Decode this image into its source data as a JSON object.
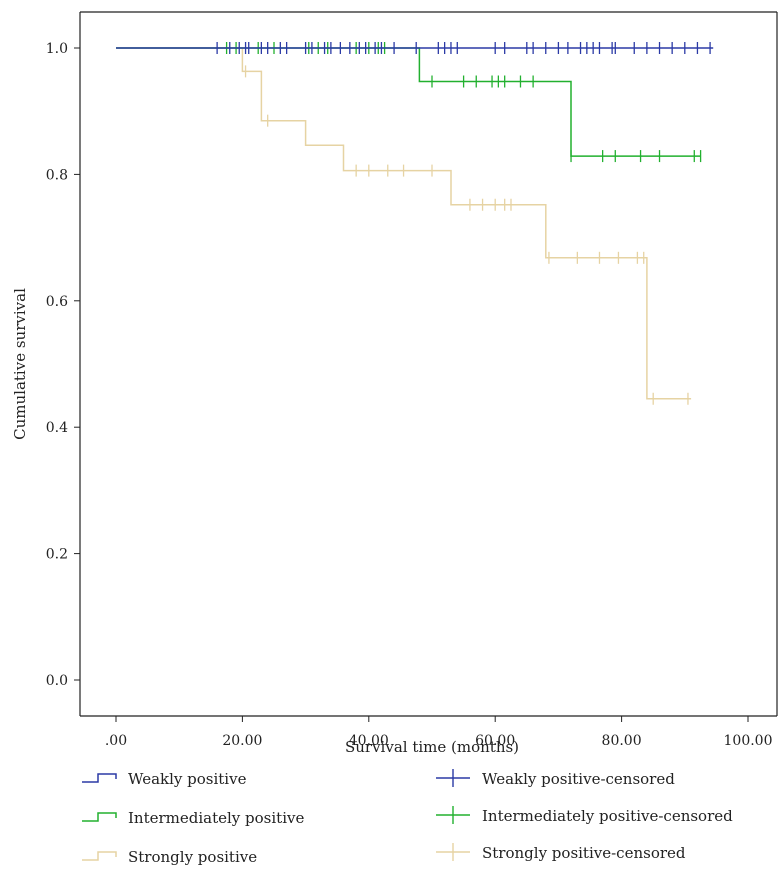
{
  "chart_data": {
    "type": "line",
    "subtype": "kaplan-meier",
    "xlabel": "Survival time (months)",
    "ylabel": "Cumulative survival",
    "xlim": [
      0,
      100
    ],
    "ylim": [
      0,
      1.0
    ],
    "x_ticks": [
      0,
      20,
      40,
      60,
      80,
      100
    ],
    "x_tick_labels": [
      ".00",
      "20.00",
      "40.00",
      "60.00",
      "80.00",
      "100.00"
    ],
    "y_ticks": [
      0,
      0.2,
      0.4,
      0.6,
      0.8,
      1.0
    ],
    "y_tick_labels": [
      "0.0",
      "0.2",
      "0.4",
      "0.6",
      "0.8",
      "1.0"
    ],
    "grid": false,
    "legend_position": "bottom",
    "legend": {
      "weakly": "Weakly positive",
      "intermediately": "Intermediately positive",
      "strongly": "Strongly positive",
      "weakly_censored": "Weakly positive-censored",
      "intermediately_censored": "Intermediately positive-censored",
      "strongly_censored": "Strongly positive-censored"
    },
    "series": [
      {
        "name": "Weakly positive",
        "color": "#2b3aa6",
        "steps": [
          [
            0,
            1.0
          ],
          [
            94.5,
            1.0
          ]
        ],
        "censored": [
          [
            16,
            1.0
          ],
          [
            18,
            1.0
          ],
          [
            19.5,
            1.0
          ],
          [
            20.5,
            1.0
          ],
          [
            21,
            1.0
          ],
          [
            23,
            1.0
          ],
          [
            24,
            1.0
          ],
          [
            26,
            1.0
          ],
          [
            27,
            1.0
          ],
          [
            30,
            1.0
          ],
          [
            31,
            1.0
          ],
          [
            33,
            1.0
          ],
          [
            34,
            1.0
          ],
          [
            35.5,
            1.0
          ],
          [
            37,
            1.0
          ],
          [
            38.5,
            1.0
          ],
          [
            39.5,
            1.0
          ],
          [
            41,
            1.0
          ],
          [
            42,
            1.0
          ],
          [
            44,
            1.0
          ],
          [
            47.5,
            1.0
          ],
          [
            51,
            1.0
          ],
          [
            52,
            1.0
          ],
          [
            53,
            1.0
          ],
          [
            54,
            1.0
          ],
          [
            60,
            1.0
          ],
          [
            61.5,
            1.0
          ],
          [
            65,
            1.0
          ],
          [
            66,
            1.0
          ],
          [
            68,
            1.0
          ],
          [
            70,
            1.0
          ],
          [
            71.5,
            1.0
          ],
          [
            73.5,
            1.0
          ],
          [
            74.5,
            1.0
          ],
          [
            75.5,
            1.0
          ],
          [
            76.5,
            1.0
          ],
          [
            78.5,
            1.0
          ],
          [
            79,
            1.0
          ],
          [
            82,
            1.0
          ],
          [
            84,
            1.0
          ],
          [
            86,
            1.0
          ],
          [
            88,
            1.0
          ],
          [
            90,
            1.0
          ],
          [
            92,
            1.0
          ],
          [
            94,
            1.0
          ]
        ]
      },
      {
        "name": "Intermediately positive",
        "color": "#22b02f",
        "steps": [
          [
            0,
            1.0
          ],
          [
            48,
            1.0
          ],
          [
            48,
            0.947
          ],
          [
            72,
            0.947
          ],
          [
            72,
            0.829
          ],
          [
            92.5,
            0.829
          ]
        ],
        "censored": [
          [
            17.5,
            1.0
          ],
          [
            19,
            1.0
          ],
          [
            22.5,
            1.0
          ],
          [
            25,
            1.0
          ],
          [
            30.5,
            1.0
          ],
          [
            32,
            1.0
          ],
          [
            33.5,
            1.0
          ],
          [
            38,
            1.0
          ],
          [
            40,
            1.0
          ],
          [
            41.5,
            1.0
          ],
          [
            42.5,
            1.0
          ],
          [
            50,
            0.947
          ],
          [
            55,
            0.947
          ],
          [
            57,
            0.947
          ],
          [
            59.5,
            0.947
          ],
          [
            60.5,
            0.947
          ],
          [
            61.5,
            0.947
          ],
          [
            64,
            0.947
          ],
          [
            66,
            0.947
          ],
          [
            72,
            0.829
          ],
          [
            77,
            0.829
          ],
          [
            79,
            0.829
          ],
          [
            83,
            0.829
          ],
          [
            86,
            0.829
          ],
          [
            91.5,
            0.829
          ],
          [
            92.5,
            0.829
          ]
        ]
      },
      {
        "name": "Strongly positive",
        "color": "#e6d3a3",
        "steps": [
          [
            0,
            1.0
          ],
          [
            20,
            1.0
          ],
          [
            20,
            0.963
          ],
          [
            23,
            0.963
          ],
          [
            23,
            0.885
          ],
          [
            30,
            0.885
          ],
          [
            30,
            0.846
          ],
          [
            36,
            0.846
          ],
          [
            36,
            0.806
          ],
          [
            53,
            0.806
          ],
          [
            53,
            0.752
          ],
          [
            68,
            0.752
          ],
          [
            68,
            0.668
          ],
          [
            84,
            0.668
          ],
          [
            84,
            0.445
          ],
          [
            91,
            0.445
          ]
        ],
        "censored": [
          [
            20.5,
            0.963
          ],
          [
            24,
            0.885
          ],
          [
            38,
            0.806
          ],
          [
            40,
            0.806
          ],
          [
            43,
            0.806
          ],
          [
            45.5,
            0.806
          ],
          [
            50,
            0.806
          ],
          [
            56,
            0.752
          ],
          [
            58,
            0.752
          ],
          [
            60,
            0.752
          ],
          [
            61.5,
            0.752
          ],
          [
            62.5,
            0.752
          ],
          [
            68.5,
            0.668
          ],
          [
            73,
            0.668
          ],
          [
            76.5,
            0.668
          ],
          [
            79.5,
            0.668
          ],
          [
            82.5,
            0.668
          ],
          [
            83.5,
            0.668
          ],
          [
            85,
            0.445
          ],
          [
            90.5,
            0.445
          ]
        ]
      }
    ]
  }
}
